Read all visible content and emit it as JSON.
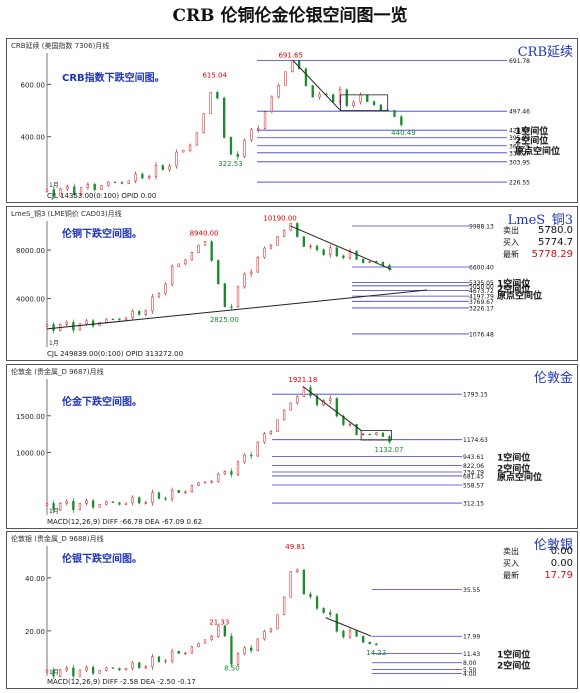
{
  "title": "CRB 伦铜伦金伦银空间图一览",
  "colors": {
    "up": "#cf1a1a",
    "down": "#1a8a2a",
    "ann": "#1f35b5",
    "level": "#3b3bd6",
    "peak": "#e00000",
    "trend": "#222222"
  },
  "chart_data": [
    {
      "type": "candlestick",
      "name": "crb",
      "header": "CRB延续 (美国指数 7306)月线",
      "footer": "CJL 14353.00(0:100)   OPID 0.00",
      "brand": "CRB延续",
      "annotation": "CRB指数下跌空间图。",
      "corner_label": "1月",
      "ylim": [
        200,
        720
      ],
      "yticks": [
        400,
        600
      ],
      "ytick_labels": [
        "400.00",
        "600.00"
      ],
      "path": [
        [
          0,
          190
        ],
        [
          8,
          195
        ],
        [
          16,
          205
        ],
        [
          22,
          218
        ],
        [
          30,
          230
        ],
        [
          36,
          250
        ],
        [
          40,
          262
        ],
        [
          45,
          285
        ],
        [
          50,
          330
        ],
        [
          54,
          370
        ],
        [
          58,
          420
        ],
        [
          60,
          490
        ],
        [
          62,
          560
        ],
        [
          64,
          615
        ],
        [
          66,
          500
        ],
        [
          68,
          360
        ],
        [
          70,
          325
        ],
        [
          73,
          345
        ],
        [
          76,
          385
        ],
        [
          79,
          430
        ],
        [
          82,
          470
        ],
        [
          85,
          520
        ],
        [
          88,
          600
        ],
        [
          91,
          650
        ],
        [
          93,
          680
        ],
        [
          94,
          690
        ],
        [
          96,
          660
        ],
        [
          99,
          600
        ],
        [
          101,
          560
        ],
        [
          103,
          530
        ],
        [
          106,
          580
        ],
        [
          109,
          540
        ],
        [
          112,
          560
        ],
        [
          115,
          520
        ],
        [
          118,
          555
        ],
        [
          121,
          535
        ],
        [
          124,
          540
        ],
        [
          127,
          500
        ],
        [
          130,
          495
        ],
        [
          133,
          475
        ],
        [
          136,
          450
        ]
      ],
      "peaks": [
        {
          "x": 64,
          "label": "615.04",
          "y": 615
        },
        {
          "x": 93,
          "label": "691.65",
          "y": 692
        }
      ],
      "troughs": [
        {
          "x": 70,
          "label": "322.53",
          "y": 322
        },
        {
          "x": 136,
          "label": "440.49",
          "y": 440
        }
      ],
      "levels": [
        {
          "value": 691.78,
          "label": "691.78"
        },
        {
          "value": 497.46,
          "label": "497.46"
        },
        {
          "value": 424.89,
          "label": "424.89"
        },
        {
          "value": 395.97,
          "label": "395.97"
        },
        {
          "value": 365.26,
          "label": "365.26"
        },
        {
          "value": 338.27,
          "label": "338.27"
        },
        {
          "value": 303.95,
          "label": "303.95"
        },
        {
          "value": 226.55,
          "label": "226.55"
        }
      ],
      "boxes": [
        {
          "x0": 112,
          "x1": 130,
          "y0": 500,
          "y1": 560
        }
      ],
      "trend_lines": [
        {
          "x0": 94,
          "y0": 690,
          "x1": 112,
          "y1": 500
        }
      ],
      "callouts": [
        "1空间位",
        "2空间位",
        "原点空间位"
      ]
    },
    {
      "type": "candlestick",
      "name": "copper",
      "header": "LmeS_铜3 (LME铜价 CAD03)月线",
      "footer": "CJL 249839.00(0:100)   OPID 313272.00",
      "brand": "LmeS_铜3",
      "annotation": "伦铜下跌空间图。",
      "corner_label": "1月",
      "ylim": [
        0,
        10400
      ],
      "yticks": [
        4000,
        8000
      ],
      "ytick_labels": [
        "4000.00",
        "8000.00"
      ],
      "path": [
        [
          0,
          1700
        ],
        [
          8,
          1750
        ],
        [
          16,
          1900
        ],
        [
          24,
          2200
        ],
        [
          32,
          2500
        ],
        [
          38,
          3000
        ],
        [
          42,
          3800
        ],
        [
          46,
          5200
        ],
        [
          50,
          6500
        ],
        [
          54,
          7300
        ],
        [
          58,
          7800
        ],
        [
          62,
          8940
        ],
        [
          66,
          6800
        ],
        [
          69,
          3500
        ],
        [
          71,
          3000
        ],
        [
          74,
          4200
        ],
        [
          78,
          5800
        ],
        [
          82,
          7000
        ],
        [
          86,
          8000
        ],
        [
          90,
          9000
        ],
        [
          94,
          9600
        ],
        [
          96,
          10190
        ],
        [
          98,
          9600
        ],
        [
          101,
          8400
        ],
        [
          104,
          8000
        ],
        [
          107,
          8300
        ],
        [
          110,
          7600
        ],
        [
          113,
          7900
        ],
        [
          116,
          7500
        ],
        [
          119,
          7700
        ],
        [
          122,
          7300
        ],
        [
          125,
          7100
        ],
        [
          128,
          7000
        ],
        [
          132,
          6800
        ],
        [
          136,
          6600
        ]
      ],
      "peaks": [
        {
          "x": 62,
          "label": "8940.00",
          "y": 8940
        },
        {
          "x": 92,
          "label": "10190.00",
          "y": 10190
        }
      ],
      "troughs": [
        {
          "x": 70,
          "label": "2825.00",
          "y": 2825
        }
      ],
      "levels": [
        {
          "value": 9988.13,
          "label": "9988.13"
        },
        {
          "value": 6600.4,
          "label": "6600.40"
        },
        {
          "value": 5335.05,
          "label": "5335.05"
        },
        {
          "value": 5050.0,
          "label": "5050.00"
        },
        {
          "value": 4673.72,
          "label": "4673.72"
        },
        {
          "value": 4197.79,
          "label": "4197.79"
        },
        {
          "value": 3769.67,
          "label": "3769.67"
        },
        {
          "value": 3226.17,
          "label": "3226.17"
        },
        {
          "value": 1076.48,
          "label": "1076.48"
        }
      ],
      "boxes": [],
      "trend_lines": [
        {
          "x0": 96,
          "y0": 10000,
          "x1": 136,
          "y1": 6400
        },
        {
          "x0": 0,
          "y0": 1500,
          "x1": 150,
          "y1": 4700
        }
      ],
      "callouts": [
        "1空间位",
        "2空间位",
        "原点空间位"
      ],
      "quote": [
        {
          "k": "卖出",
          "v": "5780.0"
        },
        {
          "k": "买入",
          "v": "5774.7"
        },
        {
          "k": "最新",
          "v": "5778.29",
          "red": true
        }
      ]
    },
    {
      "type": "candlestick",
      "name": "gold",
      "header": "伦敦金 (贵金属_D 9687)月线",
      "footer": "MACD(12,26,9)  DIFF -66.78   DEA -67.09   0.62",
      "brand": "伦敦金",
      "annotation": "伦金下跌空间图。",
      "corner_label": "1月",
      "ylim": [
        150,
        2000
      ],
      "yticks": [
        1000,
        1500
      ],
      "ytick_labels": [
        "1000.00",
        "1500.00"
      ],
      "path": [
        [
          0,
          280
        ],
        [
          10,
          290
        ],
        [
          20,
          300
        ],
        [
          30,
          320
        ],
        [
          38,
          350
        ],
        [
          44,
          400
        ],
        [
          50,
          430
        ],
        [
          56,
          520
        ],
        [
          62,
          600
        ],
        [
          68,
          680
        ],
        [
          72,
          750
        ],
        [
          76,
          850
        ],
        [
          80,
          1000
        ],
        [
          84,
          1150
        ],
        [
          88,
          1300
        ],
        [
          92,
          1500
        ],
        [
          96,
          1650
        ],
        [
          99,
          1800
        ],
        [
          101,
          1921
        ],
        [
          103,
          1780
        ],
        [
          105,
          1650
        ],
        [
          107,
          1700
        ],
        [
          110,
          1750
        ],
        [
          113,
          1600
        ],
        [
          116,
          1450
        ],
        [
          119,
          1350
        ],
        [
          122,
          1250
        ],
        [
          125,
          1280
        ],
        [
          128,
          1220
        ],
        [
          131,
          1260
        ],
        [
          134,
          1190
        ],
        [
          137,
          1174
        ]
      ],
      "peaks": [
        {
          "x": 101,
          "label": "1921.18",
          "y": 1921
        }
      ],
      "troughs": [
        {
          "x": 135,
          "label": "1132.07",
          "y": 1132
        }
      ],
      "levels": [
        {
          "value": 1793.15,
          "label": "1793.15"
        },
        {
          "value": 1174.63,
          "label": "1174.63"
        },
        {
          "value": 943.61,
          "label": "943.61"
        },
        {
          "value": 822.06,
          "label": "822.06"
        },
        {
          "value": 734.79,
          "label": "734.79"
        },
        {
          "value": 681.45,
          "label": "681.45"
        },
        {
          "value": 558.57,
          "label": "558.57"
        },
        {
          "value": 312.15,
          "label": "312.15"
        }
      ],
      "boxes": [
        {
          "x0": 124,
          "x1": 136,
          "y0": 1170,
          "y1": 1300
        }
      ],
      "trend_lines": [
        {
          "x0": 101,
          "y0": 1900,
          "x1": 124,
          "y1": 1300
        }
      ],
      "callouts": [
        "1空间位",
        "2空间位",
        "原点空间位"
      ]
    },
    {
      "type": "candlestick",
      "name": "silver",
      "header": "伦敦银 (贵金属_D 9688)月线",
      "footer": "MACD(12,26,9)  DIFF -2.58   DEA -2.50   -0.17",
      "brand": "伦敦银",
      "annotation": "伦银下跌空间图。",
      "corner_label": "1月",
      "ylim": [
        3,
        52
      ],
      "yticks": [
        20,
        40
      ],
      "ytick_labels": [
        "20.00",
        "40.00"
      ],
      "path": [
        [
          0,
          4.5
        ],
        [
          10,
          4.8
        ],
        [
          20,
          5.2
        ],
        [
          30,
          6
        ],
        [
          38,
          7.2
        ],
        [
          44,
          9
        ],
        [
          50,
          11
        ],
        [
          56,
          13
        ],
        [
          60,
          15
        ],
        [
          64,
          18
        ],
        [
          68,
          21.33
        ],
        [
          71,
          16
        ],
        [
          73,
          8.5
        ],
        [
          76,
          11
        ],
        [
          80,
          14
        ],
        [
          84,
          17
        ],
        [
          88,
          21
        ],
        [
          92,
          28
        ],
        [
          95,
          36
        ],
        [
          97,
          46
        ],
        [
          98,
          49
        ],
        [
          100,
          36
        ],
        [
          103,
          32
        ],
        [
          106,
          30
        ],
        [
          109,
          28
        ],
        [
          112,
          24
        ],
        [
          115,
          20
        ],
        [
          118,
          18
        ],
        [
          121,
          19
        ],
        [
          124,
          17
        ],
        [
          127,
          15
        ],
        [
          130,
          14.22
        ]
      ],
      "peaks": [
        {
          "x": 68,
          "label": "21.33",
          "y": 21.33
        },
        {
          "x": 98,
          "label": "49.81",
          "y": 49.81
        }
      ],
      "troughs": [
        {
          "x": 73,
          "label": "8.50",
          "y": 8.5
        },
        {
          "x": 130,
          "label": "14.22",
          "y": 14.22
        }
      ],
      "levels": [
        {
          "value": 35.55,
          "label": "35.55"
        },
        {
          "value": 17.99,
          "label": "17.99"
        },
        {
          "value": 11.43,
          "label": "11.43"
        },
        {
          "value": 8.0,
          "label": "8.00"
        },
        {
          "value": 5.5,
          "label": "5.50"
        },
        {
          "value": 4.0,
          "label": "4.00"
        }
      ],
      "boxes": [],
      "trend_lines": [
        {
          "x0": 110,
          "y0": 25,
          "x1": 128,
          "y1": 18
        }
      ],
      "callouts": [
        "1空间位",
        "2空间位"
      ],
      "quote": [
        {
          "k": "卖出",
          "v": "0.00"
        },
        {
          "k": "买入",
          "v": "0.00"
        },
        {
          "k": "最新",
          "v": "17.79",
          "red": true
        }
      ]
    }
  ]
}
